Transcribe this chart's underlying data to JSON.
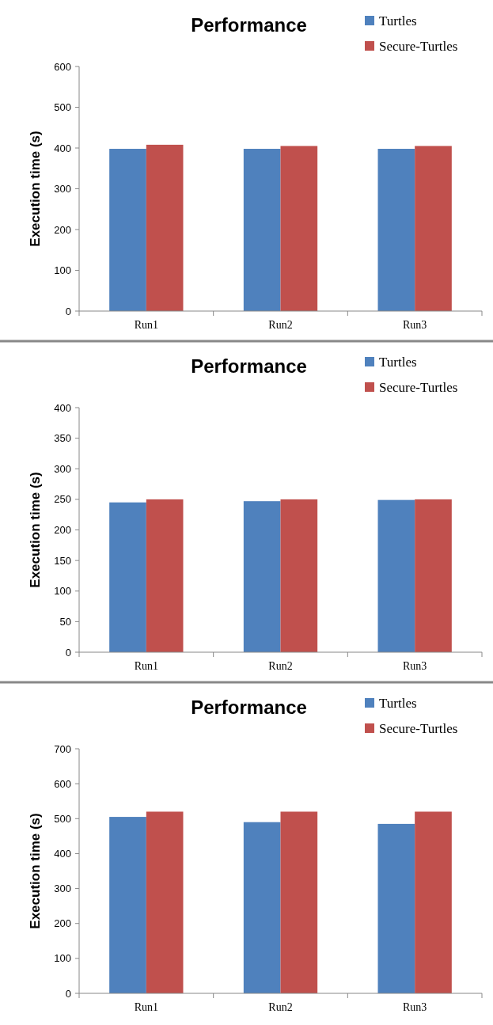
{
  "chart_data": [
    {
      "type": "bar",
      "title": "Performance",
      "ylabel": "Execution time (s)",
      "categories": [
        "Run1",
        "Run2",
        "Run3"
      ],
      "series": [
        {
          "name": "Turtles",
          "color": "#4f81bd",
          "values": [
            398,
            398,
            398
          ]
        },
        {
          "name": "Secure-Turtles",
          "color": "#c0504d",
          "values": [
            408,
            405,
            405
          ]
        }
      ],
      "ylim": [
        0,
        600
      ],
      "yticks": [
        0,
        100,
        200,
        300,
        400,
        500,
        600
      ],
      "grid": false,
      "legend": "top right"
    },
    {
      "type": "bar",
      "title": "Performance",
      "ylabel": "Execution time (s)",
      "categories": [
        "Run1",
        "Run2",
        "Run3"
      ],
      "series": [
        {
          "name": "Turtles",
          "color": "#4f81bd",
          "values": [
            245,
            247,
            249
          ]
        },
        {
          "name": "Secure-Turtles",
          "color": "#c0504d",
          "values": [
            250,
            250,
            250
          ]
        }
      ],
      "ylim": [
        0,
        400
      ],
      "yticks": [
        0,
        50,
        100,
        150,
        200,
        250,
        300,
        350,
        400
      ],
      "grid": false,
      "legend": "top right"
    },
    {
      "type": "bar",
      "title": "Performance",
      "ylabel": "Execution time (s)",
      "categories": [
        "Run1",
        "Run2",
        "Run3"
      ],
      "series": [
        {
          "name": "Turtles",
          "color": "#4f81bd",
          "values": [
            505,
            490,
            485
          ]
        },
        {
          "name": "Secure-Turtles",
          "color": "#c0504d",
          "values": [
            520,
            520,
            520
          ]
        }
      ],
      "ylim": [
        0,
        700
      ],
      "yticks": [
        0,
        100,
        200,
        300,
        400,
        500,
        600,
        700
      ],
      "grid": false,
      "legend": "top right"
    }
  ]
}
